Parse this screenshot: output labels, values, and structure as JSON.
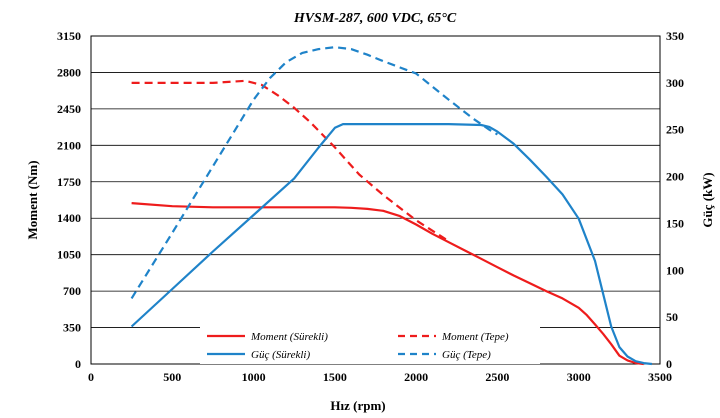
{
  "chart_data": {
    "type": "line",
    "title": "HVSM-287, 600 VDC, 65°C",
    "xlabel": "Hız (rpm)",
    "ylabel_left": "Moment (Nm)",
    "ylabel_right": "Güç (kW)",
    "xlim": [
      0,
      3500
    ],
    "ylim_left": [
      0,
      3150
    ],
    "ylim_right": [
      0,
      350
    ],
    "x_ticks": [
      "0",
      "500",
      "1000",
      "1500",
      "2000",
      "2500",
      "3000",
      "3500"
    ],
    "y_left_ticks": [
      "0",
      "350",
      "700",
      "1050",
      "1400",
      "1750",
      "2100",
      "2450",
      "2800",
      "3150"
    ],
    "y_right_ticks": [
      "0",
      "50",
      "100",
      "150",
      "200",
      "250",
      "300",
      "350"
    ],
    "grid": "horizontal",
    "legend_position": "bottom-center",
    "series": [
      {
        "name": "Moment (Sürekli)",
        "axis": "left",
        "color": "#ee1c1c",
        "dash": "solid",
        "x": [
          250,
          500,
          750,
          1000,
          1250,
          1500,
          1600,
          1700,
          1800,
          1900,
          2000,
          2100,
          2200,
          2300,
          2400,
          2500,
          2600,
          2700,
          2800,
          2900,
          3000,
          3050,
          3100,
          3150,
          3200,
          3250,
          3300,
          3350,
          3400
        ],
        "y": [
          1545,
          1515,
          1505,
          1505,
          1505,
          1505,
          1500,
          1490,
          1470,
          1420,
          1340,
          1250,
          1170,
          1090,
          1010,
          930,
          850,
          775,
          700,
          630,
          540,
          470,
          380,
          290,
          190,
          80,
          35,
          10,
          0
        ]
      },
      {
        "name": "Moment (Tepe)",
        "axis": "left",
        "color": "#ee1c1c",
        "dash": "dashed",
        "x": [
          250,
          500,
          750,
          950,
          1050,
          1150,
          1250,
          1350,
          1500,
          1650,
          1800,
          2000,
          2200
        ],
        "y": [
          2700,
          2700,
          2700,
          2720,
          2680,
          2580,
          2460,
          2320,
          2080,
          1820,
          1620,
          1380,
          1180
        ]
      },
      {
        "name": "Güç (Sürekli)",
        "axis": "right",
        "color": "#1f83c9",
        "dash": "solid",
        "x": [
          250,
          500,
          750,
          1000,
          1250,
          1400,
          1500,
          1550,
          1600,
          1800,
          2000,
          2200,
          2400,
          2450,
          2500,
          2600,
          2700,
          2800,
          2900,
          3000,
          3100,
          3150,
          3200,
          3250,
          3300,
          3350,
          3400,
          3450
        ],
        "y": [
          40,
          80,
          120,
          159,
          198,
          231,
          252,
          256,
          256,
          256,
          256,
          256,
          255,
          253,
          248,
          235,
          218,
          200,
          181,
          155,
          110,
          75,
          40,
          18,
          8,
          3,
          1,
          0
        ]
      },
      {
        "name": "Güç (Tepe)",
        "axis": "right",
        "color": "#1f83c9",
        "dash": "dashed",
        "x": [
          250,
          500,
          750,
          1000,
          1100,
          1200,
          1300,
          1400,
          1500,
          1600,
          1700,
          1800,
          2000,
          2200,
          2350,
          2450,
          2500
        ],
        "y": [
          70,
          140,
          211,
          282,
          305,
          322,
          332,
          336,
          338,
          336,
          330,
          323,
          310,
          282,
          262,
          250,
          245
        ]
      }
    ]
  }
}
